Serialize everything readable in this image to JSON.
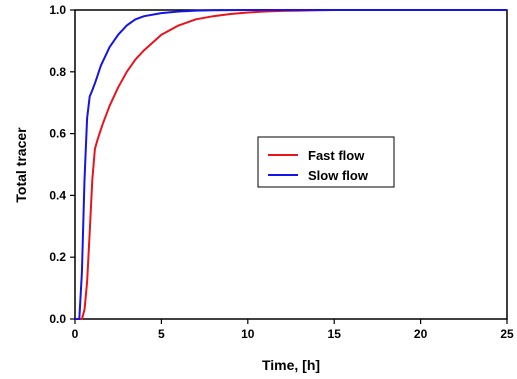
{
  "chart_data": {
    "type": "line",
    "title": "",
    "xlabel": "Time, [h]",
    "ylabel": "Total tracer",
    "xlim": [
      0,
      25
    ],
    "ylim": [
      0,
      1.0
    ],
    "xticks": [
      0,
      5,
      10,
      15,
      20,
      25
    ],
    "yticks": [
      0.0,
      0.2,
      0.4,
      0.6,
      0.8,
      1.0
    ],
    "xtick_labels": [
      "0",
      "5",
      "10",
      "15",
      "20",
      "25"
    ],
    "ytick_labels": [
      "0.0",
      "0.2",
      "0.4",
      "0.6",
      "0.8",
      "1.0"
    ],
    "grid": false,
    "legend_position": "center",
    "series": [
      {
        "name": "Fast flow",
        "color": "#e8141c",
        "x": [
          0,
          0.4,
          0.55,
          0.7,
          0.85,
          1.0,
          1.15,
          1.3,
          1.6,
          2.0,
          2.5,
          3.0,
          3.5,
          4.0,
          5.0,
          6.0,
          7.0,
          8.0,
          9.0,
          10.0,
          11.0,
          12.0,
          13.0,
          14.0,
          15.0,
          17.0,
          20.0,
          25.0
        ],
        "y": [
          0,
          0.0,
          0.03,
          0.12,
          0.28,
          0.45,
          0.55,
          0.58,
          0.63,
          0.69,
          0.75,
          0.8,
          0.84,
          0.87,
          0.92,
          0.95,
          0.97,
          0.98,
          0.987,
          0.992,
          0.995,
          0.997,
          0.998,
          0.999,
          1.0,
          1.0,
          1.0,
          1.0
        ]
      },
      {
        "name": "Slow flow",
        "color": "#1414e6",
        "x": [
          0,
          0.25,
          0.4,
          0.55,
          0.7,
          0.85,
          1.0,
          1.2,
          1.5,
          2.0,
          2.5,
          3.0,
          3.5,
          4.0,
          5.0,
          6.0,
          7.0,
          8.0,
          10.0,
          15.0,
          20.0,
          25.0
        ],
        "y": [
          0,
          0.0,
          0.15,
          0.45,
          0.65,
          0.72,
          0.74,
          0.77,
          0.82,
          0.88,
          0.92,
          0.95,
          0.97,
          0.98,
          0.99,
          0.995,
          0.998,
          0.999,
          1.0,
          1.0,
          1.0,
          1.0
        ]
      }
    ]
  }
}
